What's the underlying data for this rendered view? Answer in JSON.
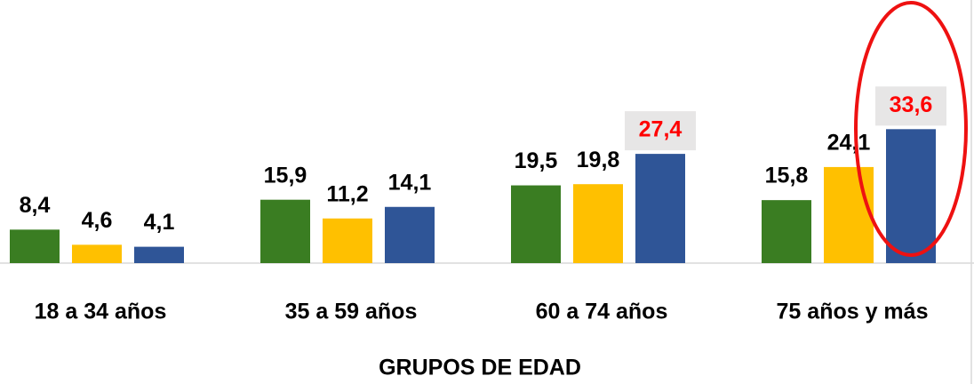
{
  "chart_data": {
    "type": "bar",
    "categories": [
      "18 a 34 años",
      "35 a 59 años",
      "60 a 74 años",
      "75 años y más"
    ],
    "x_label": "GRUPOS DE EDAD",
    "series": [
      {
        "color": "#3a7d22",
        "values": [
          8.4,
          15.9,
          19.5,
          15.8
        ],
        "value_labels": [
          "8,4",
          "15,9",
          "19,5",
          "15,8"
        ]
      },
      {
        "color": "#ffc000",
        "values": [
          4.6,
          11.2,
          19.8,
          24.1
        ],
        "value_labels": [
          "4,6",
          "11,2",
          "19,8",
          "24,1"
        ]
      },
      {
        "color": "#2f5597",
        "values": [
          4.1,
          14.1,
          27.4,
          33.6
        ],
        "value_labels": [
          "4,1",
          "14,1",
          "27,4",
          "33,6"
        ],
        "value_label_colors": [
          "#000000",
          "#000000",
          "#ff0000",
          "#ff0000"
        ]
      }
    ],
    "ylim": [
      0,
      66
    ],
    "grid": false
  }
}
